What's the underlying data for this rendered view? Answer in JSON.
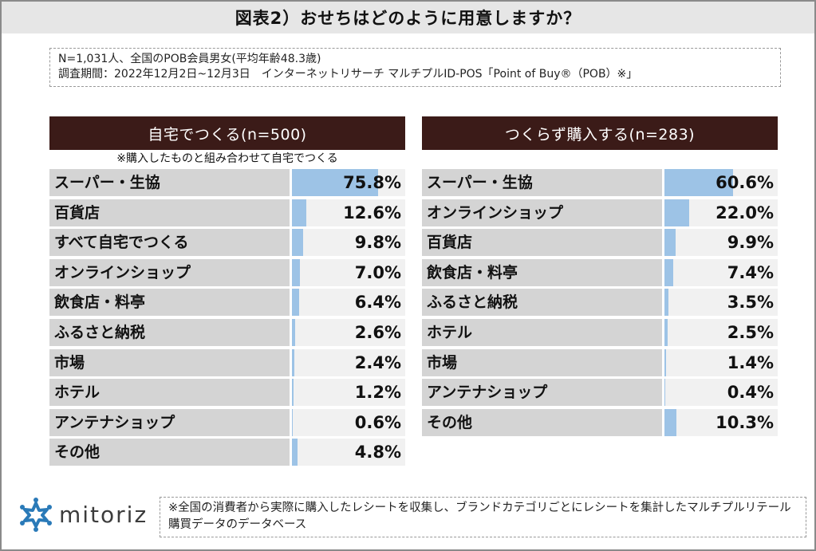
{
  "title": "図表2）おせちはどのように用意しますか？",
  "notes": {
    "line1": "N=1,031人、全国のPOB会員男女(平均年齢48.3歳)",
    "line2": "調査期間：2022年12月2日~12月3日　インターネットリサーチ マルチプルID-POS「Point of Buy®（POB）※」"
  },
  "footnote": "※全国の消費者から実際に購入したレシートを収集し、ブランドカテゴリごとにレシートを集計したマルチプルリテール購買データのデータベース",
  "logo": {
    "text": "mitoriz",
    "icon": "mitoriz-star-icon",
    "color": "#2a7ab8"
  },
  "colors": {
    "header": "#3b1b18",
    "bar": "#9dc3e6",
    "label_bg": "#d4d4d4",
    "track_bg": "#f1f1f1"
  },
  "chart_data": [
    {
      "type": "bar",
      "orientation": "horizontal",
      "title": "自宅でつくる(n=500)",
      "subtitle": "※購入したものと組み合わせて自宅でつくる",
      "unit": "%",
      "categories": [
        "スーパー・生協",
        "百貨店",
        "すべて自宅でつくる",
        "オンラインショップ",
        "飲食店・料亭",
        "ふるさと納税",
        "市場",
        "ホテル",
        "アンテナショップ",
        "その他"
      ],
      "values": [
        75.8,
        12.6,
        9.8,
        7.0,
        6.4,
        2.6,
        2.4,
        1.2,
        0.6,
        4.8
      ],
      "labels": [
        "75.8%",
        "12.6%",
        "9.8%",
        "7.0%",
        "6.4%",
        "2.6%",
        "2.4%",
        "1.2%",
        "0.6%",
        "4.8%"
      ],
      "xlim": [
        0,
        100
      ]
    },
    {
      "type": "bar",
      "orientation": "horizontal",
      "title": "つくらず購入する(n=283)",
      "subtitle": "",
      "unit": "%",
      "categories": [
        "スーパー・生協",
        "オンラインショップ",
        "百貨店",
        "飲食店・料亭",
        "ふるさと納税",
        "ホテル",
        "市場",
        "アンテナショップ",
        "その他"
      ],
      "values": [
        60.6,
        22.0,
        9.9,
        7.4,
        3.5,
        2.5,
        1.4,
        0.4,
        10.3
      ],
      "labels": [
        "60.6%",
        "22.0%",
        "9.9%",
        "7.4%",
        "3.5%",
        "2.5%",
        "1.4%",
        "0.4%",
        "10.3%"
      ],
      "xlim": [
        0,
        100
      ]
    }
  ]
}
